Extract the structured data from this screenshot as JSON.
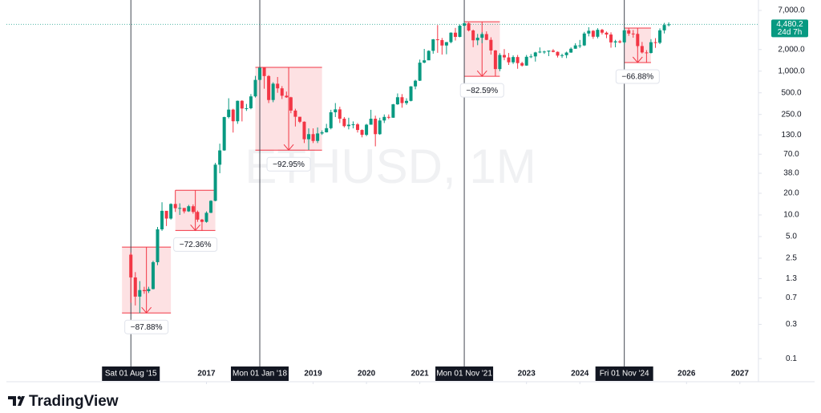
{
  "chart_data": {
    "type": "candlestick",
    "watermark": "ETHUSD, 1M",
    "log_scale": true,
    "up_color": "#089981",
    "down_color": "#f23645",
    "xlim": [
      "2013-04",
      "2027-05"
    ],
    "ylim": [
      0.049,
      8600
    ],
    "xticks": [
      {
        "value": "2017-01",
        "label": "2017"
      },
      {
        "value": "2019-01",
        "label": "2019"
      },
      {
        "value": "2020-01",
        "label": "2020"
      },
      {
        "value": "2021-01",
        "label": "2021"
      },
      {
        "value": "2023-01",
        "label": "2023"
      },
      {
        "value": "2024-01",
        "label": "2024"
      },
      {
        "value": "2026-01",
        "label": "2026"
      },
      {
        "value": "2027-01",
        "label": "2027"
      }
    ],
    "yticks": [
      {
        "value": 7000,
        "label": "7,000.0"
      },
      {
        "value": 2000,
        "label": "2,000.0"
      },
      {
        "value": 1000,
        "label": "1,000.0"
      },
      {
        "value": 500,
        "label": "500.0"
      },
      {
        "value": 250,
        "label": "250.0"
      },
      {
        "value": 130,
        "label": "130.0"
      },
      {
        "value": 70,
        "label": "70.0"
      },
      {
        "value": 38,
        "label": "38.0"
      },
      {
        "value": 20,
        "label": "20.0"
      },
      {
        "value": 10,
        "label": "10.0"
      },
      {
        "value": 5,
        "label": "5.0"
      },
      2.5,
      1.3,
      0.7,
      0.3,
      0.1
    ],
    "x": [
      "2015-08",
      "2015-09",
      "2015-10",
      "2015-11",
      "2015-12",
      "2016-01",
      "2016-02",
      "2016-03",
      "2016-04",
      "2016-05",
      "2016-06",
      "2016-07",
      "2016-08",
      "2016-09",
      "2016-10",
      "2016-11",
      "2016-12",
      "2017-01",
      "2017-02",
      "2017-03",
      "2017-04",
      "2017-05",
      "2017-06",
      "2017-07",
      "2017-08",
      "2017-09",
      "2017-10",
      "2017-11",
      "2017-12",
      "2018-01",
      "2018-02",
      "2018-03",
      "2018-04",
      "2018-05",
      "2018-06",
      "2018-07",
      "2018-08",
      "2018-09",
      "2018-10",
      "2018-11",
      "2018-12",
      "2019-01",
      "2019-02",
      "2019-03",
      "2019-04",
      "2019-05",
      "2019-06",
      "2019-07",
      "2019-08",
      "2019-09",
      "2019-10",
      "2019-11",
      "2019-12",
      "2020-01",
      "2020-02",
      "2020-03",
      "2020-04",
      "2020-05",
      "2020-06",
      "2020-07",
      "2020-08",
      "2020-09",
      "2020-10",
      "2020-11",
      "2020-12",
      "2021-01",
      "2021-02",
      "2021-03",
      "2021-04",
      "2021-05",
      "2021-06",
      "2021-07",
      "2021-08",
      "2021-09",
      "2021-10",
      "2021-11",
      "2021-12",
      "2022-01",
      "2022-02",
      "2022-03",
      "2022-04",
      "2022-05",
      "2022-06",
      "2022-07",
      "2022-08",
      "2022-09",
      "2022-10",
      "2022-11",
      "2022-12",
      "2023-01",
      "2023-02",
      "2023-03",
      "2023-04",
      "2023-05",
      "2023-06",
      "2023-07",
      "2023-08",
      "2023-09",
      "2023-10",
      "2023-11",
      "2023-12",
      "2024-01",
      "2024-02",
      "2024-03",
      "2024-04",
      "2024-05",
      "2024-06",
      "2024-07",
      "2024-08",
      "2024-09",
      "2024-10",
      "2024-11",
      "2024-12",
      "2025-01",
      "2025-02",
      "2025-03",
      "2025-04",
      "2025-05",
      "2025-06",
      "2025-07",
      "2025-08",
      "2025-09"
    ],
    "open": [
      2.8,
      1.35,
      0.73,
      0.9,
      0.87,
      0.93,
      2.2,
      6.3,
      11.4,
      8.9,
      14.2,
      12.4,
      12.5,
      11.2,
      13.2,
      11.0,
      8.6,
      8.0,
      10.7,
      15.7,
      50,
      79,
      230,
      292,
      201,
      387,
      302,
      305,
      446,
      756,
      1118,
      855,
      397,
      669,
      577,
      455,
      433,
      283,
      232,
      198,
      113,
      133,
      107,
      136,
      141,
      161,
      268,
      294,
      218,
      172,
      180,
      182,
      152,
      130,
      180,
      218,
      133,
      206,
      231,
      225,
      346,
      434,
      360,
      386,
      614,
      737,
      1314,
      1416,
      1918,
      2773,
      2707,
      2275,
      2536,
      3433,
      3000,
      4288,
      4630,
      3683,
      2688,
      2920,
      3282,
      2727,
      1942,
      1070,
      1679,
      1554,
      1328,
      1572,
      1295,
      1197,
      1585,
      1605,
      1822,
      1869,
      1874,
      1934,
      1857,
      1646,
      1671,
      1816,
      2052,
      2282,
      2283,
      3341,
      3647,
      3014,
      3763,
      3434,
      3233,
      2514,
      2602,
      2518,
      3706,
      3337,
      3300,
      2237,
      1822,
      1794,
      2530,
      2486,
      3700,
      4390
    ],
    "high": [
      3.0,
      1.6,
      1.2,
      1.0,
      1.0,
      2.3,
      6.8,
      15,
      11,
      14.5,
      22,
      14.5,
      12.5,
      13.8,
      14.0,
      11.5,
      8.8,
      11.2,
      16,
      53,
      98,
      232,
      420,
      300,
      390,
      395,
      350,
      480,
      860,
      1130,
      1050,
      880,
      700,
      830,
      620,
      520,
      440,
      300,
      230,
      200,
      160,
      160,
      165,
      150,
      185,
      290,
      360,
      320,
      230,
      225,
      200,
      190,
      155,
      185,
      290,
      240,
      225,
      250,
      250,
      350,
      490,
      480,
      420,
      620,
      760,
      1450,
      2040,
      1950,
      2800,
      4380,
      2900,
      2550,
      3470,
      4000,
      4460,
      4870,
      4780,
      3800,
      3300,
      3480,
      3580,
      2960,
      1970,
      1780,
      2030,
      1790,
      1660,
      1680,
      1350,
      1680,
      1730,
      1860,
      2140,
      1930,
      1930,
      2030,
      1880,
      1750,
      1870,
      2140,
      2450,
      2720,
      3520,
      4090,
      3730,
      3970,
      3880,
      3560,
      3470,
      2730,
      2720,
      3980,
      3950,
      3740,
      3440,
      2550,
      1960,
      2790,
      2880,
      3940,
      4700,
      4780
    ],
    "low": [
      0.6,
      0.55,
      0.43,
      0.8,
      0.82,
      0.92,
      2.0,
      6.0,
      7.0,
      8.6,
      11.0,
      10.0,
      10.5,
      11.0,
      10.4,
      8.0,
      6.0,
      7.8,
      10.6,
      15.5,
      38,
      78,
      220,
      140,
      185,
      200,
      280,
      295,
      430,
      750,
      570,
      360,
      370,
      500,
      410,
      425,
      260,
      170,
      190,
      100,
      80,
      100,
      100,
      130,
      140,
      155,
      230,
      190,
      165,
      155,
      160,
      140,
      120,
      125,
      215,
      90,
      130,
      190,
      215,
      225,
      340,
      310,
      340,
      380,
      560,
      730,
      1290,
      1430,
      1750,
      1800,
      1700,
      1720,
      2450,
      2670,
      2960,
      3950,
      3570,
      2160,
      2300,
      2450,
      2700,
      1700,
      851,
      1000,
      1420,
      1220,
      1260,
      1080,
      1160,
      1190,
      1520,
      1360,
      1780,
      1740,
      1620,
      1830,
      1550,
      1530,
      1520,
      1800,
      2050,
      2100,
      2240,
      3050,
      2820,
      2860,
      3240,
      2880,
      2120,
      2150,
      2440,
      2370,
      3100,
      2920,
      2120,
      1760,
      1320,
      1760,
      2110,
      2380,
      3350,
      4200
    ],
    "close": [
      1.35,
      0.73,
      0.9,
      0.87,
      0.93,
      2.2,
      6.3,
      11.4,
      8.9,
      14.2,
      12.4,
      12.5,
      11.2,
      13.2,
      11.0,
      8.6,
      8.0,
      10.7,
      15.7,
      50,
      79,
      230,
      292,
      201,
      387,
      302,
      305,
      446,
      756,
      1118,
      855,
      397,
      669,
      577,
      455,
      433,
      283,
      232,
      198,
      113,
      133,
      107,
      136,
      141,
      161,
      268,
      294,
      218,
      172,
      180,
      182,
      152,
      130,
      180,
      218,
      133,
      206,
      231,
      225,
      346,
      434,
      360,
      386,
      614,
      737,
      1314,
      1416,
      1918,
      2773,
      2707,
      2275,
      2536,
      3433,
      3000,
      4288,
      4630,
      3683,
      2688,
      2920,
      3282,
      2727,
      1942,
      1070,
      1679,
      1554,
      1328,
      1572,
      1295,
      1197,
      1585,
      1605,
      1822,
      1869,
      1874,
      1934,
      1857,
      1646,
      1671,
      1816,
      2052,
      2282,
      2283,
      3341,
      3647,
      3014,
      3763,
      3434,
      3233,
      2514,
      2602,
      2518,
      3706,
      3337,
      3300,
      2237,
      1822,
      1794,
      2530,
      2486,
      3700,
      4390,
      4480.2
    ],
    "last_price": {
      "value": 4480.2,
      "label": "4,480.2"
    },
    "countdown": "24d 7h",
    "price_line_color": "#089981",
    "markers": [
      {
        "x": "2015-08",
        "label": "Sat 01 Aug '15"
      },
      {
        "x": "2018-01",
        "label": "Mon 01 Jan '18"
      },
      {
        "x": "2021-11",
        "label": "Mon 01 Nov '21"
      },
      {
        "x": "2024-11",
        "label": "Fri 01 Nov '24"
      }
    ],
    "drawdowns": [
      {
        "start": "2015-06",
        "end": "2016-05",
        "high": 3.57,
        "low": 0.433,
        "label": "−87.88%"
      },
      {
        "start": "2016-06",
        "end": "2017-03",
        "high": 22,
        "low": 6.08,
        "label": "−72.36%"
      },
      {
        "start": "2017-12",
        "end": "2019-03",
        "high": 1130,
        "low": 79.7,
        "label": "−92.95%"
      },
      {
        "start": "2021-11",
        "end": "2022-07",
        "high": 4870,
        "low": 848,
        "label": "−82.59%"
      },
      {
        "start": "2024-11",
        "end": "2025-05",
        "high": 3980,
        "low": 1318,
        "label": "−66.88%"
      }
    ],
    "box_color": "#f23645"
  },
  "branding": "TradingView"
}
